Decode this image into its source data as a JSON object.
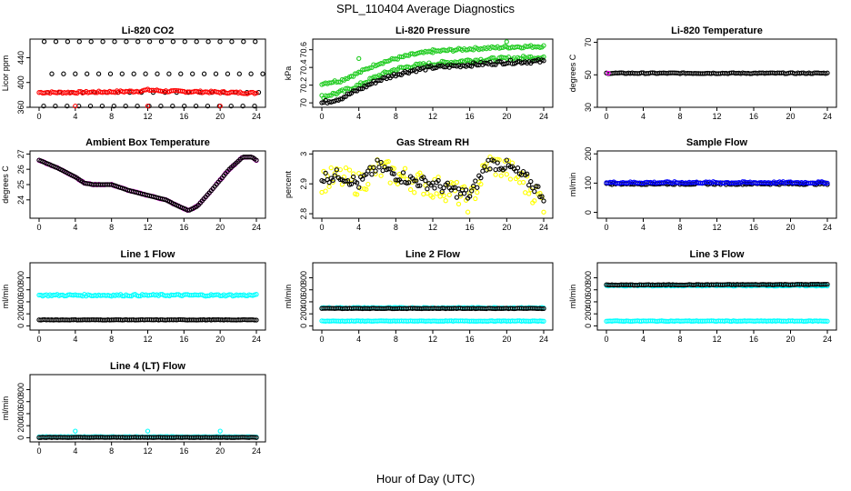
{
  "figure": {
    "title": "SPL_110404  Average Diagnostics",
    "xlabel": "Hour of Day (UTC)"
  },
  "colors": {
    "black": "#000000",
    "red": "#ff0000",
    "green": "#22cc22",
    "magenta": "#ff00ff",
    "yellow": "#ffff00",
    "blue": "#0000ff",
    "cyan": "#00ffff"
  },
  "chart_data": [
    {
      "id": "co2",
      "type": "scatter",
      "title": "Li-820 CO2",
      "ylabel": "Licor ppm",
      "xlim": [
        0,
        24
      ],
      "xticks": [
        0,
        4,
        8,
        12,
        16,
        20,
        24
      ],
      "ylim": [
        360,
        470
      ],
      "yticks": [
        360,
        400,
        440
      ],
      "series": [
        {
          "color": "black",
          "kind": "levels",
          "levels": [
            362,
            384,
            414,
            466
          ],
          "xrange": [
            0.5,
            23.8
          ]
        },
        {
          "color": "red",
          "kind": "band",
          "points": [
            [
              0,
              384
            ],
            [
              4,
              384
            ],
            [
              8,
              385
            ],
            [
              11,
              386
            ],
            [
              12,
              388
            ],
            [
              14,
              386
            ],
            [
              18,
              385
            ],
            [
              21,
              384
            ],
            [
              24,
              383
            ]
          ],
          "spread": 1.5
        },
        {
          "color": "red",
          "kind": "points",
          "points": [
            [
              4,
              362
            ],
            [
              12,
              362
            ],
            [
              20,
              362
            ]
          ]
        }
      ]
    },
    {
      "id": "pressure",
      "type": "scatter",
      "title": "Li-820 Pressure",
      "ylabel": "kPa",
      "xlim": [
        0,
        24
      ],
      "xticks": [
        0,
        4,
        8,
        12,
        16,
        20,
        24
      ],
      "ylim": [
        69.95,
        70.72
      ],
      "yticks": [
        70.0,
        70.2,
        70.4,
        70.6
      ],
      "series": [
        {
          "color": "green",
          "kind": "band",
          "points": [
            [
              0,
              70.22
            ],
            [
              2,
              70.25
            ],
            [
              4,
              70.34
            ],
            [
              6,
              70.44
            ],
            [
              8,
              70.5
            ],
            [
              10,
              70.55
            ],
            [
              12,
              70.58
            ],
            [
              16,
              70.61
            ],
            [
              20,
              70.63
            ],
            [
              24,
              70.64
            ]
          ],
          "spread": 0.015
        },
        {
          "color": "green",
          "kind": "band",
          "points": [
            [
              0,
              70.07
            ],
            [
              2,
              70.12
            ],
            [
              4,
              70.2
            ],
            [
              6,
              70.3
            ],
            [
              8,
              70.38
            ],
            [
              10,
              70.42
            ],
            [
              12,
              70.44
            ],
            [
              16,
              70.48
            ],
            [
              20,
              70.5
            ],
            [
              24,
              70.52
            ]
          ],
          "spread": 0.02
        },
        {
          "color": "black",
          "kind": "band",
          "points": [
            [
              0,
              70.0
            ],
            [
              2,
              70.05
            ],
            [
              4,
              70.15
            ],
            [
              6,
              70.25
            ],
            [
              8,
              70.32
            ],
            [
              10,
              70.37
            ],
            [
              12,
              70.4
            ],
            [
              16,
              70.43
            ],
            [
              20,
              70.46
            ],
            [
              24,
              70.47
            ]
          ],
          "spread": 0.02
        },
        {
          "color": "green",
          "kind": "points",
          "points": [
            [
              4,
              70.5
            ],
            [
              12,
              70.6
            ],
            [
              20,
              70.69
            ]
          ]
        }
      ]
    },
    {
      "id": "licor-temp",
      "type": "scatter",
      "title": "Li-820 Temperature",
      "ylabel": "degrees C",
      "xlim": [
        0,
        24
      ],
      "xticks": [
        0,
        4,
        8,
        12,
        16,
        20,
        24
      ],
      "ylim": [
        30,
        72
      ],
      "yticks": [
        30,
        50,
        70
      ],
      "series": [
        {
          "color": "black",
          "kind": "band",
          "points": [
            [
              0,
              51
            ],
            [
              24,
              51
            ]
          ],
          "spread": 0.3
        },
        {
          "color": "magenta",
          "kind": "points",
          "points": [
            [
              0.2,
              51
            ]
          ]
        }
      ]
    },
    {
      "id": "box-temp",
      "type": "scatter",
      "title": "Ambient Box Temperature",
      "ylabel": "degrees C",
      "xlim": [
        0,
        24
      ],
      "xticks": [
        0,
        4,
        8,
        12,
        16,
        20,
        24
      ],
      "ylim": [
        22.8,
        27.2
      ],
      "yticks": [
        24,
        25,
        26,
        27
      ],
      "series": [
        {
          "color": "magenta",
          "kind": "band",
          "points": [
            [
              0,
              26.6
            ],
            [
              2,
              26.1
            ],
            [
              4,
              25.5
            ],
            [
              5,
              25.1
            ],
            [
              6,
              25.0
            ],
            [
              8,
              25.0
            ],
            [
              10,
              24.6
            ],
            [
              12,
              24.3
            ],
            [
              14,
              24.0
            ],
            [
              15,
              23.7
            ],
            [
              16.5,
              23.3
            ],
            [
              17.5,
              23.6
            ],
            [
              19,
              24.6
            ],
            [
              21,
              26.0
            ],
            [
              22.5,
              26.8
            ],
            [
              23.5,
              26.8
            ],
            [
              24,
              26.6
            ]
          ],
          "spread": 0.03
        },
        {
          "color": "black",
          "kind": "band",
          "points": [
            [
              0,
              26.6
            ],
            [
              2,
              26.1
            ],
            [
              4,
              25.5
            ],
            [
              5,
              25.1
            ],
            [
              6,
              25.0
            ],
            [
              8,
              25.0
            ],
            [
              10,
              24.6
            ],
            [
              12,
              24.3
            ],
            [
              14,
              24.0
            ],
            [
              15,
              23.7
            ],
            [
              16.5,
              23.3
            ],
            [
              17.5,
              23.6
            ],
            [
              19,
              24.6
            ],
            [
              21,
              26.0
            ],
            [
              22.5,
              26.8
            ],
            [
              23.5,
              26.8
            ],
            [
              24,
              26.6
            ]
          ],
          "spread": 0.0
        }
      ]
    },
    {
      "id": "rh",
      "type": "scatter",
      "title": "Gas Stream RH",
      "ylabel": "percent",
      "xlim": [
        0,
        24
      ],
      "xticks": [
        0,
        4,
        8,
        12,
        16,
        20,
        24
      ],
      "ylim": [
        2.785,
        3.01
      ],
      "yticks": [
        2.8,
        2.9,
        3.0
      ],
      "series": [
        {
          "color": "yellow",
          "kind": "band",
          "points": [
            [
              0,
              2.91
            ],
            [
              2,
              2.92
            ],
            [
              4,
              2.9
            ],
            [
              6,
              2.95
            ],
            [
              8,
              2.93
            ],
            [
              10,
              2.91
            ],
            [
              12,
              2.89
            ],
            [
              14,
              2.88
            ],
            [
              16,
              2.84
            ],
            [
              18,
              2.97
            ],
            [
              20,
              2.95
            ],
            [
              22,
              2.9
            ],
            [
              24,
              2.84
            ]
          ],
          "spread": 0.04
        },
        {
          "color": "black",
          "kind": "band",
          "points": [
            [
              0,
              2.92
            ],
            [
              2,
              2.93
            ],
            [
              4,
              2.9
            ],
            [
              6,
              2.96
            ],
            [
              8,
              2.93
            ],
            [
              10,
              2.91
            ],
            [
              12,
              2.9
            ],
            [
              14,
              2.88
            ],
            [
              16,
              2.86
            ],
            [
              18,
              2.97
            ],
            [
              20,
              2.96
            ],
            [
              22,
              2.92
            ],
            [
              24,
              2.86
            ]
          ],
          "spread": 0.02
        }
      ]
    },
    {
      "id": "sample-flow",
      "type": "scatter",
      "title": "Sample Flow",
      "ylabel": "ml/min",
      "xlim": [
        0,
        24
      ],
      "xticks": [
        0,
        4,
        8,
        12,
        16,
        20,
        24
      ],
      "ylim": [
        -20,
        210
      ],
      "yticks": [
        0,
        100,
        200
      ],
      "series": [
        {
          "color": "black",
          "kind": "band",
          "points": [
            [
              0,
              98
            ],
            [
              24,
              98
            ]
          ],
          "spread": 3
        },
        {
          "color": "blue",
          "kind": "band",
          "points": [
            [
              0,
              102
            ],
            [
              24,
              102
            ]
          ],
          "spread": 3
        }
      ]
    },
    {
      "id": "line1",
      "type": "scatter",
      "title": "Line 1 Flow",
      "ylabel": "ml/min",
      "xlim": [
        0,
        24
      ],
      "xticks": [
        0,
        4,
        8,
        12,
        16,
        20,
        24
      ],
      "ylim": [
        -70,
        1050
      ],
      "yticks": [
        0,
        200,
        400,
        600,
        800
      ],
      "series": [
        {
          "color": "cyan",
          "kind": "band",
          "points": [
            [
              0,
              510
            ],
            [
              24,
              510
            ]
          ],
          "spread": 15
        },
        {
          "color": "black",
          "kind": "band",
          "points": [
            [
              0,
              100
            ],
            [
              24,
              100
            ]
          ],
          "spread": 4
        }
      ]
    },
    {
      "id": "line2",
      "type": "scatter",
      "title": "Line 2 Flow",
      "ylabel": "ml/min",
      "xlim": [
        0,
        24
      ],
      "xticks": [
        0,
        4,
        8,
        12,
        16,
        20,
        24
      ],
      "ylim": [
        -70,
        1050
      ],
      "yticks": [
        0,
        200,
        400,
        600,
        800
      ],
      "series": [
        {
          "color": "cyan",
          "kind": "band",
          "points": [
            [
              0,
              300
            ],
            [
              24,
              300
            ]
          ],
          "spread": 8
        },
        {
          "color": "black",
          "kind": "band",
          "points": [
            [
              0,
              290
            ],
            [
              24,
              290
            ]
          ],
          "spread": 4
        },
        {
          "color": "cyan",
          "kind": "band",
          "points": [
            [
              0,
              80
            ],
            [
              24,
              80
            ]
          ],
          "spread": 4
        }
      ]
    },
    {
      "id": "line3",
      "type": "scatter",
      "title": "Line 3 Flow",
      "ylabel": "ml/min",
      "xlim": [
        0,
        24
      ],
      "xticks": [
        0,
        4,
        8,
        12,
        16,
        20,
        24
      ],
      "ylim": [
        -70,
        1050
      ],
      "yticks": [
        0,
        200,
        400,
        600,
        800
      ],
      "series": [
        {
          "color": "cyan",
          "kind": "band",
          "points": [
            [
              0,
              80
            ],
            [
              24,
              80
            ]
          ],
          "spread": 5
        },
        {
          "color": "cyan",
          "kind": "band",
          "points": [
            [
              0,
              670
            ],
            [
              24,
              670
            ]
          ],
          "spread": 8
        },
        {
          "color": "black",
          "kind": "band",
          "points": [
            [
              0,
              680
            ],
            [
              24,
              690
            ]
          ],
          "spread": 5
        }
      ]
    },
    {
      "id": "line4",
      "type": "scatter",
      "title": "Line 4 (LT) Flow",
      "ylabel": "ml/min",
      "xlim": [
        0,
        24
      ],
      "xticks": [
        0,
        4,
        8,
        12,
        16,
        20,
        24
      ],
      "ylim": [
        -70,
        1050
      ],
      "yticks": [
        0,
        200,
        400,
        600,
        800
      ],
      "series": [
        {
          "color": "cyan",
          "kind": "band",
          "points": [
            [
              0,
              15
            ],
            [
              24,
              15
            ]
          ],
          "spread": 3
        },
        {
          "color": "black",
          "kind": "band",
          "points": [
            [
              0,
              5
            ],
            [
              24,
              5
            ]
          ],
          "spread": 3
        },
        {
          "color": "cyan",
          "kind": "points",
          "points": [
            [
              4,
              110
            ],
            [
              12,
              110
            ],
            [
              20,
              110
            ]
          ]
        }
      ]
    }
  ]
}
